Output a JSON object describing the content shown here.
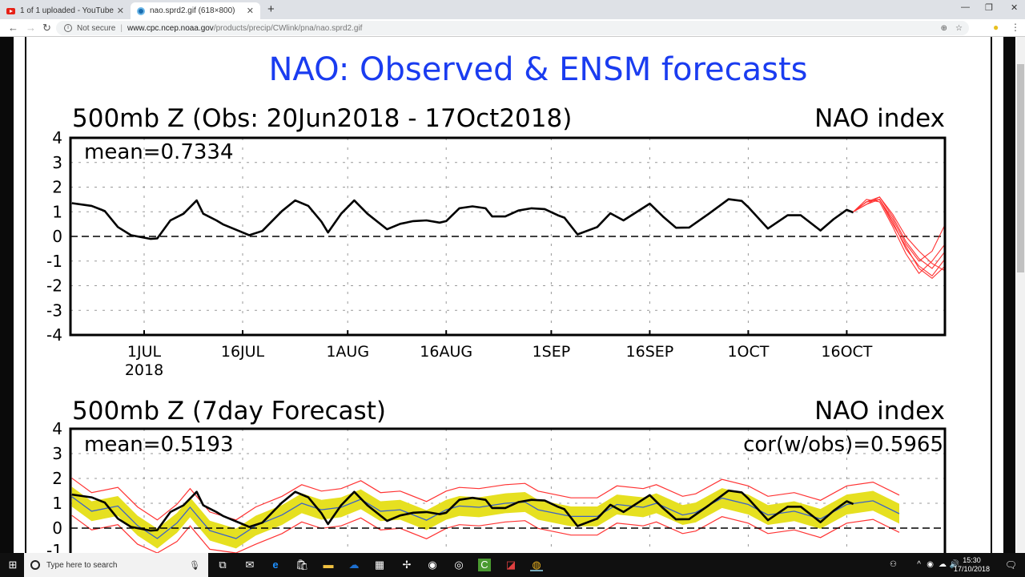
{
  "browser": {
    "tabs": [
      {
        "title": "1 of 1 uploaded - YouTube",
        "icon": "youtube-icon"
      },
      {
        "title": "nao.sprd2.gif (618×800)",
        "icon": "noaa-icon"
      }
    ],
    "new_tab": "+",
    "security": "Not secure",
    "url_host": "www.cpc.ncep.noaa.gov",
    "url_path": "/products/precip/CWlink/pna/nao.sprd2.gif"
  },
  "taskbar": {
    "search_placeholder": "Type here to search",
    "time": "15:30",
    "date": "17/10/2018"
  },
  "page": {
    "main_title": "NAO: Observed & ENSM forecasts",
    "title_color": "#1a3cf0"
  },
  "chart_data": [
    {
      "type": "line",
      "title": "500mb Z (Obs: 20Jun2018 - 17Oct2018)",
      "right_title": "NAO index",
      "annotation": "mean=0.7334",
      "ylim": [
        -4,
        4
      ],
      "yticks": [
        "4",
        "3",
        "2",
        "1",
        "0",
        "-1",
        "-2",
        "-3",
        "-4"
      ],
      "grid": true,
      "xticks": [
        {
          "date": "2018-07-01",
          "label": "1JUL",
          "sub": "2018"
        },
        {
          "date": "2018-07-16",
          "label": "16JUL"
        },
        {
          "date": "2018-08-01",
          "label": "1AUG"
        },
        {
          "date": "2018-08-16",
          "label": "16AUG"
        },
        {
          "date": "2018-09-01",
          "label": "1SEP"
        },
        {
          "date": "2018-09-16",
          "label": "16SEP"
        },
        {
          "date": "2018-10-01",
          "label": "1OCT"
        },
        {
          "date": "2018-10-16",
          "label": "16OCT"
        }
      ],
      "observed": {
        "color": "#000000",
        "x": [
          "2018-06-20",
          "2018-06-23",
          "2018-06-25",
          "2018-06-27",
          "2018-06-29",
          "2018-07-02",
          "2018-07-03",
          "2018-07-05",
          "2018-07-07",
          "2018-07-09",
          "2018-07-10",
          "2018-07-12",
          "2018-07-13",
          "2018-07-16",
          "2018-07-17",
          "2018-07-19",
          "2018-07-21",
          "2018-07-22",
          "2018-07-24",
          "2018-07-26",
          "2018-07-28",
          "2018-07-29",
          "2018-07-31",
          "2018-08-02",
          "2018-08-04",
          "2018-08-07",
          "2018-08-09",
          "2018-08-11",
          "2018-08-13",
          "2018-08-15",
          "2018-08-16",
          "2018-08-18",
          "2018-08-20",
          "2018-08-22",
          "2018-08-23",
          "2018-08-25",
          "2018-08-27",
          "2018-08-29",
          "2018-08-31",
          "2018-09-02",
          "2018-09-03",
          "2018-09-05",
          "2018-09-08",
          "2018-09-10",
          "2018-09-12",
          "2018-09-16",
          "2018-09-18",
          "2018-09-20",
          "2018-09-22",
          "2018-09-25",
          "2018-09-28",
          "2018-09-30",
          "2018-10-01",
          "2018-10-04",
          "2018-10-07",
          "2018-10-09",
          "2018-10-12",
          "2018-10-14",
          "2018-10-16",
          "2018-10-17"
        ],
        "y": [
          1.35,
          1.24,
          1.03,
          0.38,
          0.05,
          -0.1,
          -0.08,
          0.65,
          0.92,
          1.46,
          0.92,
          0.65,
          0.49,
          0.16,
          0.05,
          0.22,
          0.76,
          1.03,
          1.46,
          1.24,
          0.6,
          0.16,
          0.92,
          1.46,
          0.92,
          0.29,
          0.51,
          0.62,
          0.65,
          0.56,
          0.62,
          1.14,
          1.22,
          1.14,
          0.81,
          0.81,
          1.05,
          1.14,
          1.11,
          0.86,
          0.76,
          0.08,
          0.38,
          0.94,
          0.65,
          1.33,
          0.81,
          0.35,
          0.36,
          0.92,
          1.51,
          1.44,
          1.19,
          0.32,
          0.86,
          0.86,
          0.24,
          0.7,
          1.08,
          0.97
        ]
      },
      "ensemble": {
        "color": "#ff3333",
        "x": [
          "2018-10-17",
          "2018-10-19",
          "2018-10-21",
          "2018-10-23",
          "2018-10-25",
          "2018-10-27",
          "2018-10-29",
          "2018-10-31"
        ],
        "members": [
          [
            1.0,
            1.4,
            1.5,
            0.6,
            -0.5,
            -1.2,
            -1.6,
            -0.9
          ],
          [
            1.0,
            1.3,
            1.6,
            0.8,
            -0.2,
            -0.9,
            -1.3,
            -0.6
          ],
          [
            1.0,
            1.5,
            1.4,
            0.4,
            -0.7,
            -1.5,
            -1.0,
            -0.3
          ],
          [
            1.0,
            1.4,
            1.6,
            0.9,
            0.0,
            -0.6,
            -1.1,
            -1.4
          ],
          [
            1.0,
            1.3,
            1.5,
            0.7,
            -0.3,
            -1.0,
            -0.6,
            0.5
          ],
          [
            1.0,
            1.4,
            1.5,
            0.5,
            -0.4,
            -1.3,
            -1.7,
            -1.2
          ]
        ]
      }
    },
    {
      "type": "line",
      "title": "500mb Z (7day Forecast)",
      "right_title": "NAO index",
      "annotation": "mean=0.5193",
      "annotation_right": "cor(w/obs)=0.5965",
      "ylim": [
        -4,
        4
      ],
      "yticks": [
        "4",
        "3",
        "2",
        "1",
        "0",
        "-1"
      ],
      "grid": true,
      "forecast": {
        "x": [
          "2018-06-20",
          "2018-06-23",
          "2018-06-27",
          "2018-06-30",
          "2018-07-03",
          "2018-07-06",
          "2018-07-08",
          "2018-07-11",
          "2018-07-15",
          "2018-07-18",
          "2018-07-22",
          "2018-07-25",
          "2018-07-28",
          "2018-07-31",
          "2018-08-03",
          "2018-08-06",
          "2018-08-09",
          "2018-08-13",
          "2018-08-16",
          "2018-08-18",
          "2018-08-21",
          "2018-08-25",
          "2018-08-28",
          "2018-08-30",
          "2018-09-04",
          "2018-09-08",
          "2018-09-11",
          "2018-09-15",
          "2018-09-17",
          "2018-09-21",
          "2018-09-23",
          "2018-09-27",
          "2018-10-01",
          "2018-10-04",
          "2018-10-08",
          "2018-10-12",
          "2018-10-16",
          "2018-10-20",
          "2018-10-24"
        ],
        "mean": {
          "color": "#3a62c8",
          "y": [
            1.26,
            0.68,
            0.89,
            0.1,
            -0.42,
            0.21,
            0.84,
            -0.1,
            -0.42,
            0.1,
            0.53,
            1.0,
            0.74,
            0.84,
            1.16,
            0.68,
            0.74,
            0.32,
            0.74,
            0.89,
            0.84,
            1.0,
            1.05,
            0.74,
            0.47,
            0.47,
            0.95,
            0.84,
            1.0,
            0.53,
            0.63,
            1.21,
            0.95,
            0.53,
            0.68,
            0.37,
            0.95,
            1.1,
            0.58
          ]
        },
        "spread_upper": [
          1.66,
          1.08,
          1.29,
          0.5,
          -0.02,
          0.61,
          1.24,
          0.3,
          -0.02,
          0.5,
          0.93,
          1.4,
          1.14,
          1.24,
          1.56,
          1.08,
          1.14,
          0.72,
          1.14,
          1.29,
          1.24,
          1.4,
          1.45,
          1.14,
          0.87,
          0.87,
          1.35,
          1.24,
          1.4,
          0.93,
          1.03,
          1.61,
          1.35,
          0.93,
          1.08,
          0.77,
          1.35,
          1.5,
          0.98
        ],
        "spread_lower": [
          0.86,
          0.28,
          0.49,
          -0.3,
          -0.82,
          -0.19,
          0.44,
          -0.5,
          -0.82,
          -0.3,
          0.13,
          0.6,
          0.34,
          0.44,
          0.76,
          0.28,
          0.34,
          -0.08,
          0.34,
          0.49,
          0.44,
          0.6,
          0.65,
          0.34,
          0.07,
          0.07,
          0.55,
          0.44,
          0.6,
          0.13,
          0.23,
          0.81,
          0.55,
          0.13,
          0.28,
          -0.03,
          0.55,
          0.7,
          0.18
        ],
        "spread_color": "#e6e020",
        "max": [
          2.01,
          1.43,
          1.64,
          0.85,
          0.33,
          0.96,
          1.59,
          0.65,
          0.33,
          0.85,
          1.28,
          1.75,
          1.49,
          1.59,
          1.91,
          1.43,
          1.49,
          1.07,
          1.49,
          1.64,
          1.59,
          1.75,
          1.8,
          1.49,
          1.22,
          1.22,
          1.7,
          1.59,
          1.75,
          1.28,
          1.38,
          1.96,
          1.7,
          1.28,
          1.43,
          1.12,
          1.7,
          1.85,
          1.33
        ],
        "min": [
          0.51,
          -0.07,
          0.14,
          -0.65,
          -1.17,
          -0.54,
          0.09,
          -0.85,
          -1.17,
          -0.65,
          -0.22,
          0.25,
          -0.01,
          0.09,
          0.41,
          -0.07,
          -0.01,
          -0.43,
          -0.01,
          0.14,
          0.09,
          0.25,
          0.3,
          -0.01,
          -0.28,
          -0.28,
          0.2,
          0.09,
          0.25,
          -0.22,
          -0.12,
          0.46,
          0.2,
          -0.22,
          -0.07,
          -0.38,
          0.2,
          0.35,
          -0.17
        ],
        "range_color": "#ff3333"
      },
      "observed_same_as_top": true
    }
  ]
}
